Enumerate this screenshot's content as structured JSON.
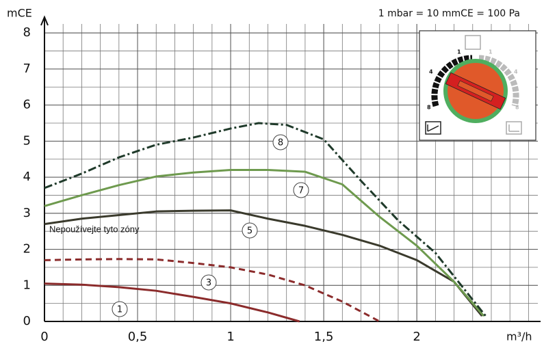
{
  "chart_data": {
    "type": "line",
    "y_label": "mCE",
    "x_label": "m³/h",
    "annotations": [
      "1 mbar = 10 mmCE = 100 Pa",
      "Nepoužívejte tyto zóny"
    ],
    "dial_labels": [
      "1",
      "4",
      "8"
    ],
    "xlim": [
      0,
      2.65
    ],
    "ylim": [
      0,
      8.25
    ],
    "xticks": [
      0,
      {
        "value": 0.5,
        "label": "0,5"
      },
      1,
      {
        "value": 1.5,
        "label": "1,5"
      },
      2
    ],
    "yticks": [
      0,
      1,
      2,
      3,
      4,
      5,
      6,
      7,
      8
    ],
    "grid": true,
    "series": [
      {
        "name": "1",
        "color": "#8b2b2b",
        "dash": "solid",
        "x": [
          0,
          0.2,
          0.4,
          0.6,
          0.8,
          1.0,
          1.2,
          1.37
        ],
        "values": [
          1.05,
          1.02,
          0.95,
          0.85,
          0.68,
          0.5,
          0.25,
          0
        ]
      },
      {
        "name": "3",
        "color": "#8b2b2b",
        "dash": "dashed",
        "x": [
          0,
          0.2,
          0.4,
          0.6,
          0.8,
          1.0,
          1.2,
          1.4,
          1.6,
          1.8
        ],
        "values": [
          1.7,
          1.72,
          1.73,
          1.72,
          1.62,
          1.5,
          1.3,
          1.0,
          0.55,
          0
        ]
      },
      {
        "name": "5",
        "color": "#3a3a2c",
        "dash": "solid",
        "x": [
          0,
          0.2,
          0.4,
          0.6,
          0.8,
          1.0,
          1.2,
          1.4,
          1.6,
          1.8,
          2.0,
          2.2,
          2.35
        ],
        "values": [
          2.7,
          2.85,
          2.95,
          3.05,
          3.07,
          3.08,
          2.85,
          2.65,
          2.4,
          2.1,
          1.7,
          1.1,
          0.15
        ]
      },
      {
        "name": "7",
        "color": "#6e9a4e",
        "dash": "solid",
        "x": [
          0,
          0.2,
          0.4,
          0.6,
          0.8,
          1.0,
          1.2,
          1.4,
          1.6,
          1.8,
          2.0,
          2.2,
          2.36
        ],
        "values": [
          3.2,
          3.5,
          3.78,
          4.02,
          4.13,
          4.2,
          4.2,
          4.15,
          3.8,
          2.9,
          2.1,
          1.1,
          0.15
        ]
      },
      {
        "name": "8",
        "color": "#1f3a2a",
        "dash": "dashdot",
        "x": [
          0,
          0.2,
          0.4,
          0.6,
          0.8,
          1.0,
          1.15,
          1.3,
          1.5,
          1.7,
          1.9,
          2.1,
          2.3,
          2.37
        ],
        "values": [
          3.7,
          4.1,
          4.55,
          4.9,
          5.1,
          5.35,
          5.5,
          5.45,
          5.05,
          3.9,
          2.8,
          1.9,
          0.6,
          0.15
        ]
      }
    ]
  }
}
